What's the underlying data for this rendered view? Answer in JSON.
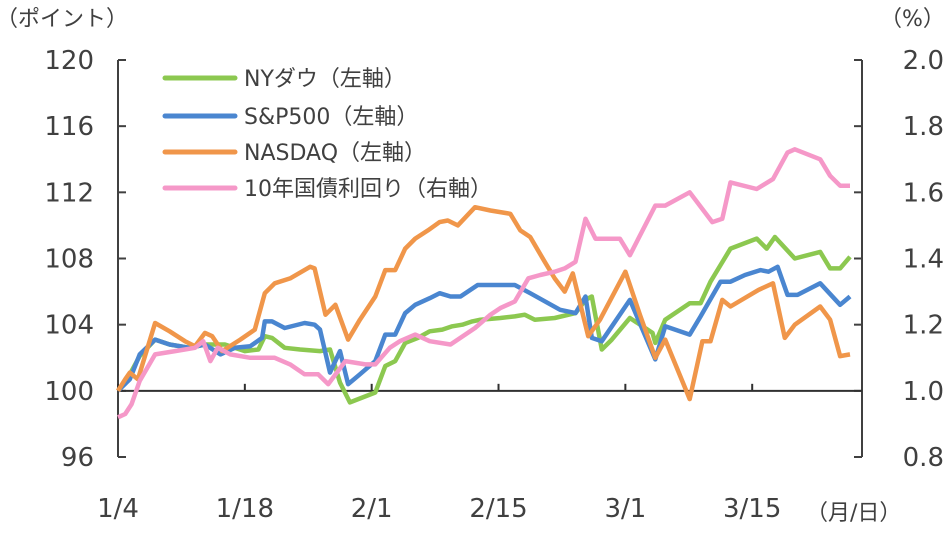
{
  "chart_data": {
    "type": "line",
    "title": "",
    "left_axis_label": "（ポイント）",
    "right_axis_label": "（%）",
    "x_unit_label": "（月/日）",
    "x_axis": {
      "unit": "days since 1/4",
      "range": [
        0,
        82
      ],
      "ticks": [
        {
          "value": 0,
          "label": "1/4"
        },
        {
          "value": 14,
          "label": "1/18"
        },
        {
          "value": 28,
          "label": "2/1"
        },
        {
          "value": 42,
          "label": "2/15"
        },
        {
          "value": 56,
          "label": "3/1"
        },
        {
          "value": 70,
          "label": "3/15"
        }
      ]
    },
    "ylim_left": [
      96,
      120
    ],
    "yticks_left": [
      "96",
      "100",
      "104",
      "108",
      "112",
      "116",
      "120"
    ],
    "ylim_right": [
      0.8,
      2.0
    ],
    "yticks_right": [
      "0.8",
      "1.0",
      "1.2",
      "1.4",
      "1.6",
      "1.8",
      "2.0"
    ],
    "reference_line_left": 100,
    "legend_placement": "top-left",
    "series": [
      {
        "name": "NYダウ（左軸）",
        "axis": "left",
        "color": "#8cc850",
        "x": [
          0,
          1.3,
          2.4,
          4.1,
          5.7,
          7.9,
          9.6,
          11.8,
          14.0,
          15.5,
          16.2,
          17.0,
          18.4,
          20.1,
          22.3,
          23.4,
          24.5,
          25.6,
          28.4,
          29.5,
          30.6,
          31.7,
          33.1,
          34.4,
          35.8,
          36.9,
          38.0,
          39.1,
          40.0,
          42.2,
          43.8,
          44.9,
          46.0,
          48.2,
          50.5,
          51.6,
          52.3,
          53.4,
          54.5,
          56.5,
          59.0,
          59.3,
          60.4,
          63.1,
          64.3,
          65.4,
          66.5,
          67.6,
          70.5,
          71.6,
          72.5,
          74.7,
          77.5,
          78.6,
          79.7,
          80.8
        ],
        "y": [
          100.0,
          101.0,
          102.1,
          103.1,
          102.8,
          102.6,
          102.8,
          102.8,
          102.4,
          102.5,
          103.3,
          103.2,
          102.6,
          102.5,
          102.4,
          102.5,
          100.5,
          99.3,
          99.9,
          101.5,
          101.8,
          102.9,
          103.2,
          103.6,
          103.7,
          103.9,
          104.0,
          104.2,
          104.3,
          104.4,
          104.5,
          104.6,
          104.3,
          104.4,
          104.7,
          105.5,
          105.7,
          102.5,
          103.1,
          104.4,
          103.5,
          102.9,
          104.3,
          105.3,
          105.3,
          106.6,
          107.6,
          108.6,
          109.2,
          108.6,
          109.3,
          108.0,
          108.4,
          107.4,
          107.4,
          108.1
        ]
      },
      {
        "name": "S&P500（左軸）",
        "axis": "left",
        "color": "#4a86d0",
        "x": [
          0,
          1.3,
          2.4,
          4.1,
          5.7,
          7.9,
          9.6,
          11.3,
          12.9,
          14.6,
          15.9,
          16.2,
          17.0,
          18.4,
          20.6,
          21.7,
          22.3,
          23.4,
          24.5,
          25.4,
          26.7,
          28.4,
          29.5,
          30.6,
          31.7,
          32.8,
          34.4,
          35.5,
          36.7,
          37.8,
          38.9,
          39.7,
          42.2,
          43.8,
          45.5,
          48.8,
          50.5,
          51.6,
          52.3,
          53.4,
          56.5,
          59.3,
          60.4,
          63.1,
          64.3,
          66.5,
          67.6,
          69.2,
          70.9,
          71.8,
          72.8,
          73.9,
          75.0,
          77.5,
          79.7,
          80.8
        ],
        "y": [
          100.0,
          100.7,
          102.2,
          103.1,
          102.8,
          102.6,
          102.8,
          102.2,
          102.6,
          102.7,
          103.2,
          104.2,
          104.2,
          103.8,
          104.1,
          104.0,
          103.7,
          101.1,
          102.4,
          100.4,
          101.0,
          101.8,
          103.4,
          103.4,
          104.7,
          105.2,
          105.6,
          105.9,
          105.7,
          105.7,
          106.1,
          106.4,
          106.4,
          106.4,
          105.9,
          104.9,
          104.7,
          105.7,
          103.2,
          103.0,
          105.5,
          101.9,
          103.9,
          103.4,
          104.5,
          106.6,
          106.6,
          107.0,
          107.3,
          107.2,
          107.5,
          105.8,
          105.8,
          106.5,
          105.2,
          105.7
        ]
      },
      {
        "name": "NASDAQ（左軸）",
        "axis": "left",
        "color": "#f0964a",
        "x": [
          0,
          0.8,
          1.3,
          2.2,
          4.1,
          5.7,
          7.4,
          8.5,
          9.6,
          10.4,
          11.5,
          13.5,
          15.1,
          16.2,
          17.3,
          19.0,
          21.2,
          21.7,
          22.9,
          24.0,
          25.4,
          26.7,
          28.4,
          29.5,
          30.6,
          31.7,
          32.8,
          34.2,
          35.5,
          36.4,
          37.5,
          39.4,
          41.1,
          43.3,
          44.4,
          45.5,
          47.1,
          48.2,
          49.3,
          50.2,
          51.9,
          53.2,
          56.0,
          57.6,
          59.3,
          60.4,
          63.1,
          64.5,
          65.4,
          66.7,
          67.6,
          70.7,
          72.3,
          73.6,
          74.7,
          77.5,
          78.6,
          79.7,
          80.8
        ],
        "y": [
          100.0,
          100.7,
          101.1,
          100.7,
          104.1,
          103.6,
          103.0,
          102.7,
          103.5,
          103.3,
          102.4,
          103.1,
          103.7,
          105.9,
          106.5,
          106.8,
          107.5,
          107.4,
          104.6,
          105.2,
          103.1,
          104.3,
          105.7,
          107.3,
          107.3,
          108.6,
          109.2,
          109.7,
          110.2,
          110.3,
          110.0,
          111.1,
          110.9,
          110.7,
          109.7,
          109.3,
          107.8,
          106.8,
          106.0,
          107.1,
          103.3,
          104.3,
          107.2,
          104.6,
          102.0,
          103.1,
          99.5,
          103.0,
          103.0,
          105.5,
          105.1,
          106.1,
          106.5,
          103.2,
          104.0,
          105.1,
          104.3,
          102.1,
          102.2
        ]
      },
      {
        "name": "10年国債利回り（右軸）",
        "axis": "right",
        "color": "#f598c8",
        "x": [
          0,
          0.8,
          1.5,
          2.4,
          4.1,
          6.3,
          8.5,
          9.4,
          10.2,
          11.0,
          12.4,
          14.6,
          16.2,
          17.3,
          19.0,
          20.6,
          22.1,
          23.2,
          25.1,
          27.3,
          28.4,
          30.0,
          31.1,
          32.8,
          34.4,
          36.7,
          39.4,
          41.1,
          42.2,
          43.8,
          45.3,
          46.6,
          48.2,
          49.3,
          50.5,
          51.6,
          52.7,
          55.4,
          56.5,
          59.3,
          60.4,
          63.1,
          65.6,
          66.7,
          67.6,
          70.5,
          72.3,
          73.9,
          74.7,
          77.5,
          78.6,
          79.7,
          80.8
        ],
        "y": [
          0.92,
          0.93,
          0.96,
          1.03,
          1.11,
          1.12,
          1.13,
          1.15,
          1.09,
          1.13,
          1.11,
          1.1,
          1.1,
          1.1,
          1.08,
          1.05,
          1.05,
          1.02,
          1.09,
          1.08,
          1.08,
          1.13,
          1.15,
          1.17,
          1.15,
          1.14,
          1.19,
          1.23,
          1.25,
          1.27,
          1.34,
          1.35,
          1.36,
          1.37,
          1.39,
          1.52,
          1.46,
          1.46,
          1.41,
          1.56,
          1.56,
          1.6,
          1.51,
          1.52,
          1.63,
          1.61,
          1.64,
          1.72,
          1.73,
          1.7,
          1.65,
          1.62,
          1.62
        ]
      }
    ]
  }
}
